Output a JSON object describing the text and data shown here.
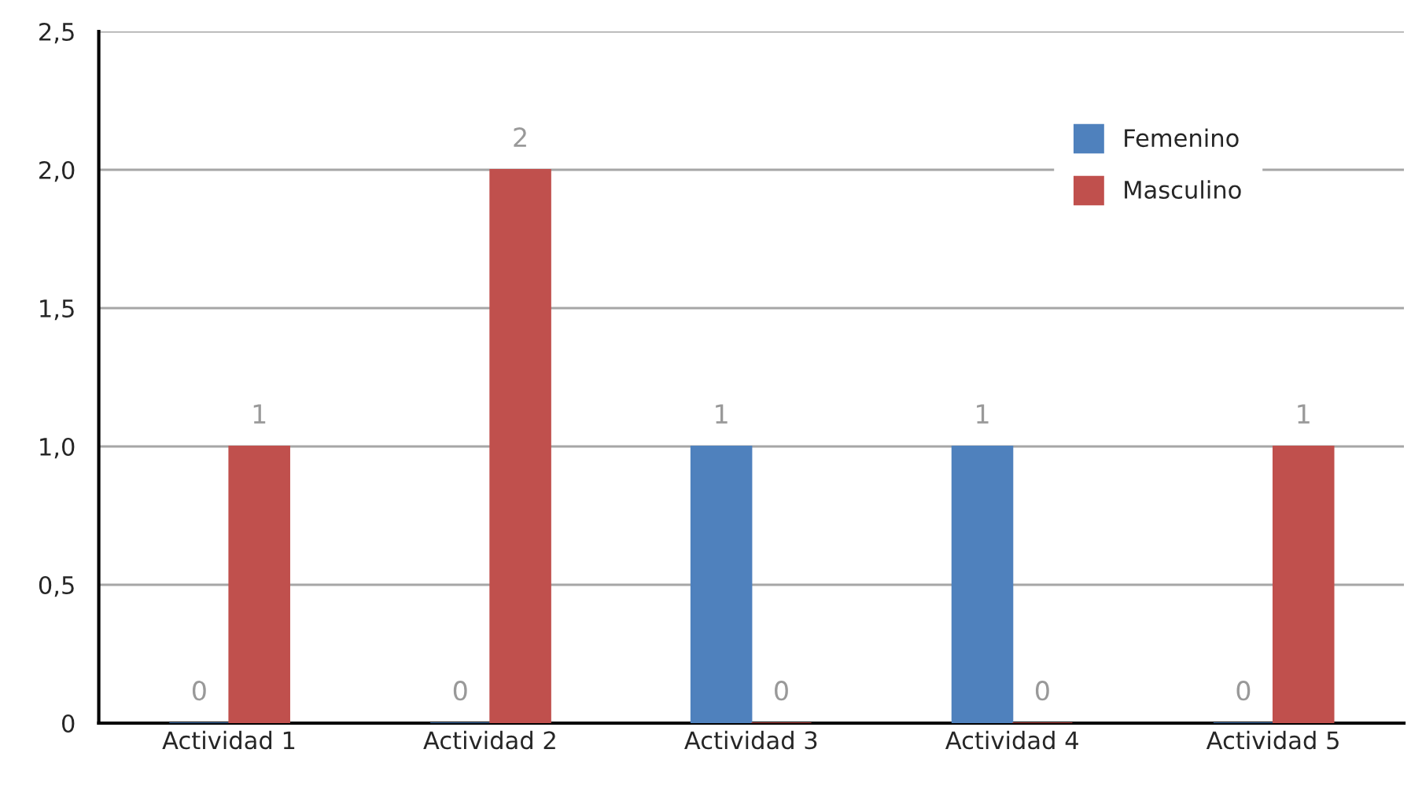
{
  "chart_data": {
    "type": "bar",
    "categories": [
      "Actividad 1",
      "Actividad 2",
      "Actividad 3",
      "Actividad 4",
      "Actividad 5"
    ],
    "series": [
      {
        "name": "Femenino",
        "color": "#4f81bd",
        "values": [
          0,
          0,
          1,
          1,
          0
        ]
      },
      {
        "name": "Masculino",
        "color": "#c0504d",
        "values": [
          1,
          2,
          0,
          0,
          1
        ]
      }
    ],
    "ylim": [
      0,
      2.5
    ],
    "yticks": [
      0,
      {
        "value": 0.5,
        "label": "0,5"
      },
      {
        "value": 1.0,
        "label": "1,0"
      },
      {
        "value": 1.5,
        "label": "1,5"
      },
      {
        "value": 2.0,
        "label": "2,0"
      },
      {
        "value": 2.5,
        "label": "2,5"
      }
    ],
    "grid": "y",
    "legend": "top right",
    "data_labels": true
  }
}
